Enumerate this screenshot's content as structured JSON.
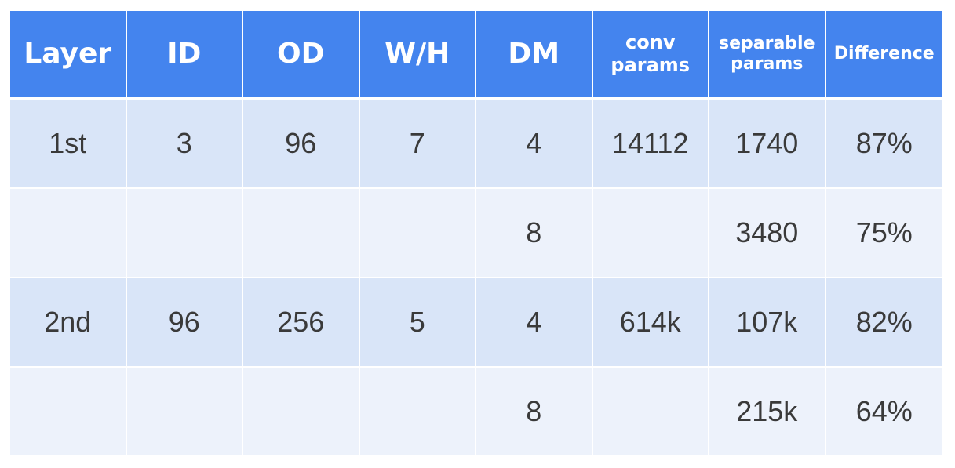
{
  "table": {
    "headers": [
      {
        "key": "layer",
        "label": "Layer"
      },
      {
        "key": "id",
        "label": "ID"
      },
      {
        "key": "od",
        "label": "OD"
      },
      {
        "key": "wh",
        "label": "W/H"
      },
      {
        "key": "dm",
        "label": "DM"
      },
      {
        "key": "conv",
        "label_line1": "conv",
        "label_line2": "params"
      },
      {
        "key": "sep",
        "label_line1": "separable",
        "label_line2": "params"
      },
      {
        "key": "diff",
        "label": "Difference"
      }
    ],
    "rows": [
      [
        "1st",
        "3",
        "96",
        "7",
        "4",
        "14112",
        "1740",
        "87%"
      ],
      [
        "",
        "",
        "",
        "",
        "8",
        "",
        "3480",
        "75%"
      ],
      [
        "2nd",
        "96",
        "256",
        "5",
        "4",
        "614k",
        "107k",
        "82%"
      ],
      [
        "",
        "",
        "",
        "",
        "8",
        "",
        "215k",
        "64%"
      ]
    ]
  },
  "colors": {
    "header_bg": "#4484ee",
    "row_dark": "#d9e5f8",
    "row_light": "#edf2fb",
    "text": "#3a3a3a"
  }
}
